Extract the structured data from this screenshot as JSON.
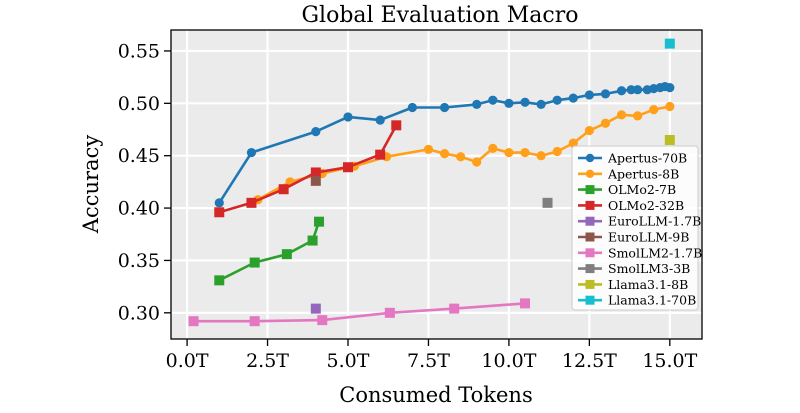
{
  "chart_data": {
    "type": "line",
    "title": "Global Evaluation Macro",
    "xlabel": "Consumed Tokens",
    "ylabel": "Accuracy",
    "xlim": [
      -0.5,
      16.0
    ],
    "ylim": [
      0.275,
      0.57
    ],
    "x_ticks": [
      0,
      2.5,
      5,
      7.5,
      10,
      12.5,
      15
    ],
    "x_tick_labels": [
      "0.0T",
      "2.5T",
      "5.0T",
      "7.5T",
      "10.0T",
      "12.5T",
      "15.0T"
    ],
    "y_ticks": [
      0.3,
      0.35,
      0.4,
      0.45,
      0.5,
      0.55
    ],
    "y_tick_labels": [
      "0.30",
      "0.35",
      "0.40",
      "0.45",
      "0.50",
      "0.55"
    ],
    "grid": true,
    "background": "#ebebeb",
    "legend_position": "bottom-right",
    "series": [
      {
        "name": "Apertus-70B",
        "color": "#1f77b4",
        "marker": "circle",
        "x": [
          1.0,
          2.0,
          4.0,
          5.0,
          6.0,
          7.0,
          8.0,
          9.0,
          9.5,
          10.0,
          10.5,
          11.0,
          11.5,
          12.0,
          12.5,
          13.0,
          13.5,
          13.8,
          14.0,
          14.3,
          14.5,
          14.7,
          14.85,
          15.0
        ],
        "y": [
          0.405,
          0.453,
          0.473,
          0.487,
          0.484,
          0.496,
          0.496,
          0.499,
          0.503,
          0.5,
          0.501,
          0.499,
          0.503,
          0.505,
          0.508,
          0.509,
          0.512,
          0.513,
          0.513,
          0.513,
          0.514,
          0.515,
          0.516,
          0.515
        ]
      },
      {
        "name": "Apertus-8B",
        "color": "#ff9f1a",
        "marker": "circle",
        "x": [
          2.2,
          3.2,
          4.2,
          5.2,
          6.2,
          7.5,
          8.0,
          8.5,
          9.0,
          9.5,
          10.0,
          10.5,
          11.0,
          11.5,
          12.0,
          12.5,
          13.0,
          13.5,
          14.0,
          14.5,
          15.0
        ],
        "y": [
          0.408,
          0.425,
          0.433,
          0.44,
          0.449,
          0.456,
          0.452,
          0.449,
          0.444,
          0.457,
          0.453,
          0.453,
          0.45,
          0.454,
          0.462,
          0.474,
          0.481,
          0.489,
          0.488,
          0.494,
          0.497
        ]
      },
      {
        "name": "OLMo2-7B",
        "color": "#2ca02c",
        "marker": "square",
        "x": [
          1.0,
          2.1,
          3.1,
          3.9,
          4.1
        ],
        "y": [
          0.331,
          0.348,
          0.356,
          0.369,
          0.387
        ]
      },
      {
        "name": "OLMo2-32B",
        "color": "#d62728",
        "marker": "square",
        "x": [
          1.0,
          2.0,
          3.0,
          4.0,
          5.0,
          6.0,
          6.5
        ],
        "y": [
          0.396,
          0.405,
          0.418,
          0.434,
          0.439,
          0.451,
          0.479
        ]
      },
      {
        "name": "EuroLLM-1.7B",
        "color": "#9467bd",
        "marker": "square",
        "x": [
          4.0
        ],
        "y": [
          0.304
        ]
      },
      {
        "name": "EuroLLM-9B",
        "color": "#8c564b",
        "marker": "square",
        "x": [
          4.0
        ],
        "y": [
          0.426
        ]
      },
      {
        "name": "SmolLM2-1.7B",
        "color": "#e377c2",
        "marker": "square",
        "x": [
          0.2,
          2.1,
          4.2,
          6.3,
          8.3,
          10.5
        ],
        "y": [
          0.292,
          0.292,
          0.293,
          0.3,
          0.304,
          0.309
        ]
      },
      {
        "name": "SmolLM3-3B",
        "color": "#7f7f7f",
        "marker": "square",
        "x": [
          11.2
        ],
        "y": [
          0.405
        ]
      },
      {
        "name": "Llama3.1-8B",
        "color": "#bcbd22",
        "marker": "square",
        "x": [
          15.0
        ],
        "y": [
          0.465
        ]
      },
      {
        "name": "Llama3.1-70B",
        "color": "#17becf",
        "marker": "square",
        "x": [
          15.0
        ],
        "y": [
          0.557
        ]
      }
    ]
  }
}
